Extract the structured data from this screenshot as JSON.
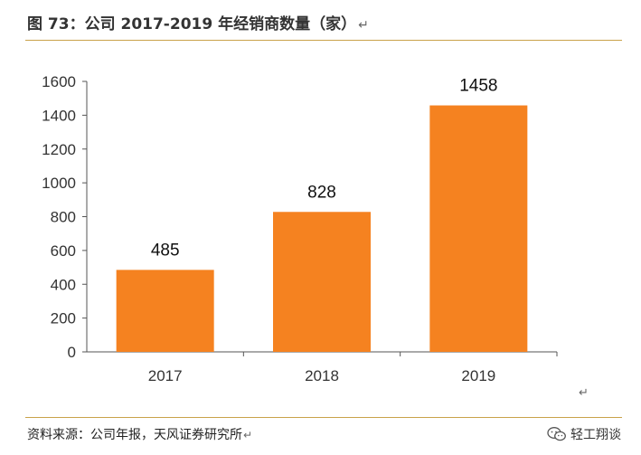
{
  "figure": {
    "title": "图 73：公司 2017-2019 年经销商数量（家）",
    "title_return_mark": "↵",
    "source": "资料来源：公司年报，天风证券研究所",
    "source_return_mark": "↵",
    "stray_return_mark": "↵",
    "watermark_text": "轻工翔谈",
    "watermark_icon": "wechat-icon"
  },
  "colors": {
    "bar": "#f58220",
    "rule": "#c9a24a",
    "axis": "#555555"
  },
  "chart_data": {
    "type": "bar",
    "categories": [
      "2017",
      "2018",
      "2019"
    ],
    "values": [
      485,
      828,
      1458
    ],
    "data_labels": [
      "485",
      "828",
      "1458"
    ],
    "y_ticks": [
      "0",
      "200",
      "400",
      "600",
      "800",
      "1000",
      "1200",
      "1400",
      "1600"
    ],
    "ylim": [
      0,
      1600
    ],
    "grid": false,
    "legend": "none",
    "title": "",
    "xlabel": "",
    "ylabel": ""
  }
}
